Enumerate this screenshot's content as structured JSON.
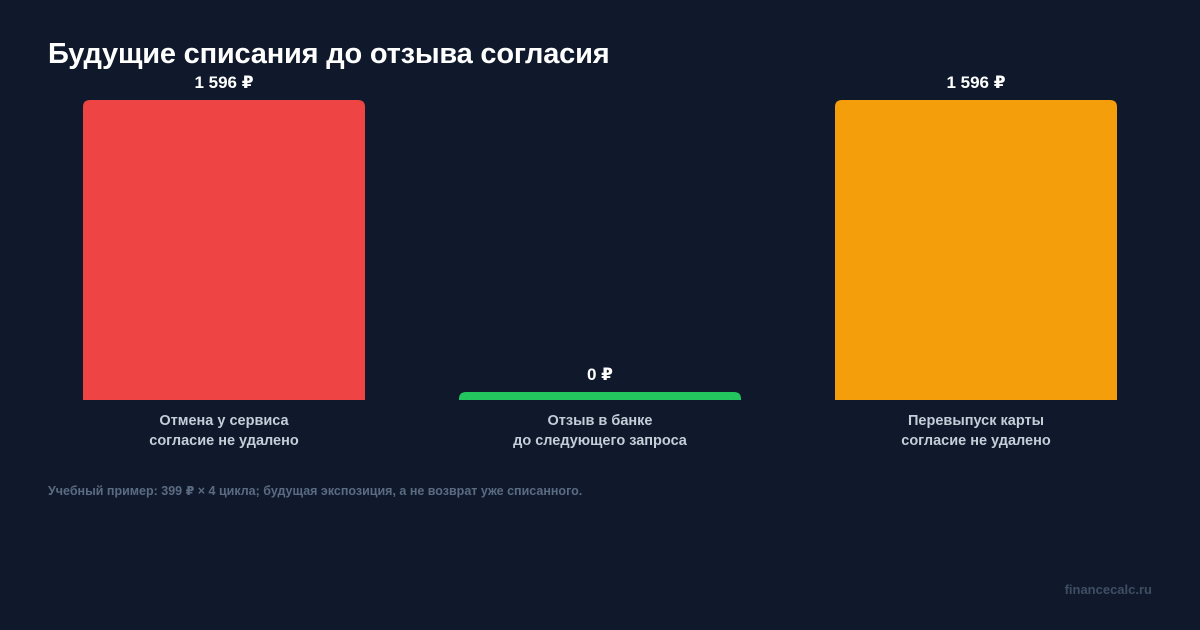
{
  "title": "Будущие списания до отзыва согласия",
  "note": "Учебный пример: 399 ₽ × 4 цикла; будущая экспозиция, а не возврат уже списанного.",
  "brand": "financecalc.ru",
  "chart_data": {
    "type": "bar",
    "title": "Будущие списания до отзыва согласия",
    "xlabel": "",
    "ylabel": "",
    "ylim": [
      0,
      1596
    ],
    "grid": false,
    "legend": "none",
    "unit": "₽",
    "categories": [
      [
        "Отмена у сервиса",
        "согласие не удалено"
      ],
      [
        "Отзыв в банке",
        "до следующего запроса"
      ],
      [
        "Перевыпуск карты",
        "согласие не удалено"
      ]
    ],
    "values": [
      1596,
      0,
      1596
    ],
    "value_labels": [
      "1 596 ₽",
      "0 ₽",
      "1 596 ₽"
    ],
    "colors": [
      "#ef4444",
      "#22c55e",
      "#f59e0b"
    ]
  }
}
